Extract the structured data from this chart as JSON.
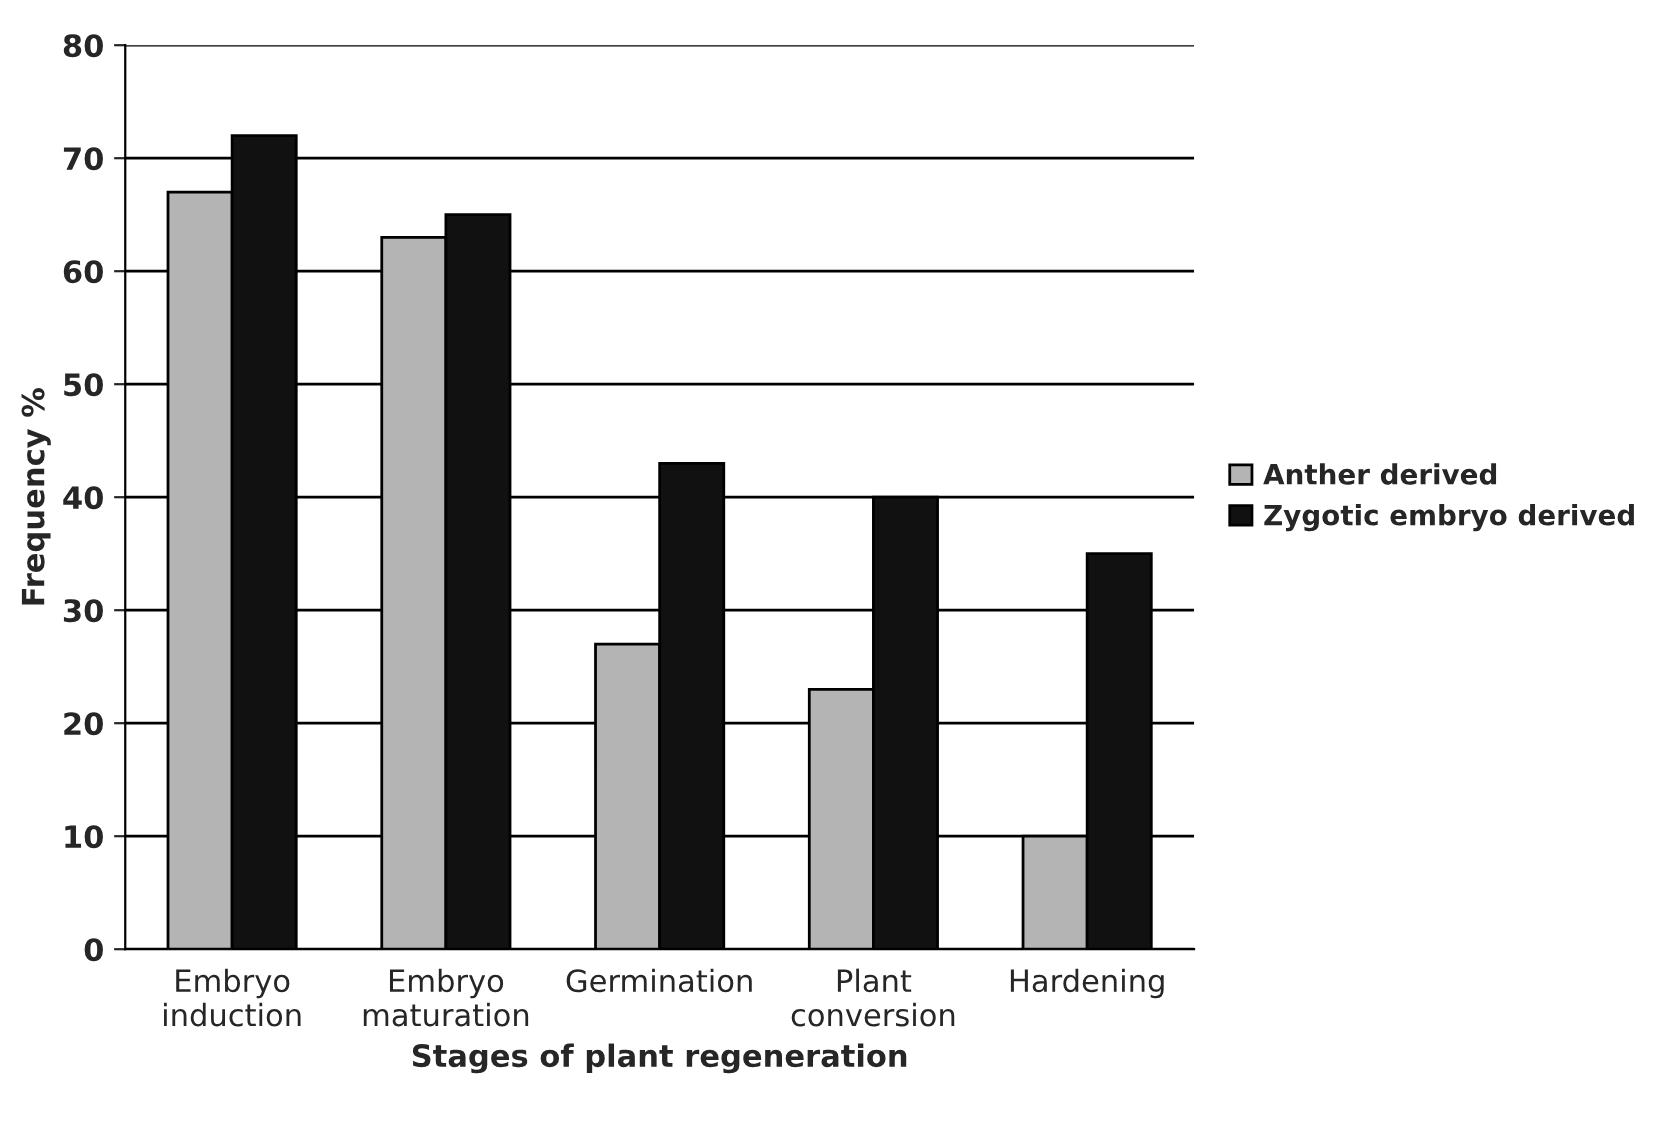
{
  "chart_data": {
    "type": "bar",
    "xlabel": "Stages of plant regeneration",
    "ylabel": "Frequency %",
    "categories": [
      "Embryo\ninduction",
      "Embryo\nmaturation",
      "Germination",
      "Plant\nconversion",
      "Hardening"
    ],
    "series": [
      {
        "name": "Anther derived",
        "color": "#b4b4b4",
        "values": [
          67,
          63,
          27,
          23,
          10
        ]
      },
      {
        "name": "Zygotic embryo derived",
        "color": "#111111",
        "values": [
          72,
          65,
          43,
          40,
          35
        ]
      }
    ],
    "ylim": [
      0,
      80
    ],
    "yticks": [
      0,
      10,
      20,
      30,
      40,
      50,
      60,
      70,
      80
    ],
    "grid": "y",
    "legend": "right"
  }
}
